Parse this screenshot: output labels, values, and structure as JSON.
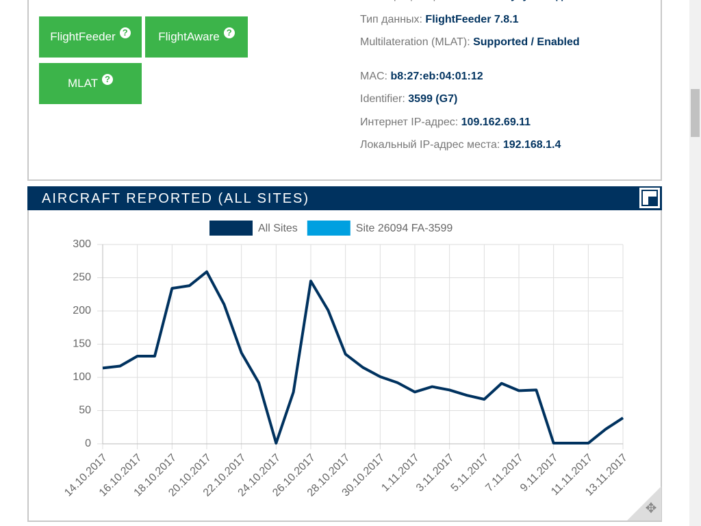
{
  "buttons": [
    {
      "label": "FlightFeeder",
      "help": "?"
    },
    {
      "label": "FlightAware",
      "help": "?"
    },
    {
      "label": "MLAT",
      "help": "?"
    }
  ],
  "info": [
    {
      "label": "Регистрация приемника:",
      "value": "Минуту назад"
    },
    {
      "label": "Тип данных:",
      "value": "FlightFeeder 7.8.1"
    },
    {
      "label": "Multilateration (MLAT):",
      "value": "Supported / Enabled"
    },
    {
      "label": "MAC:",
      "value": "b8:27:eb:04:01:12"
    },
    {
      "label": "Identifier:",
      "value": "3599 (G7)"
    },
    {
      "label": "Интернет IP-адрес:",
      "value": "109.162.69.11"
    },
    {
      "label": "Локальный IP-адрес места:",
      "value": "192.168.1.4"
    }
  ],
  "panel_title": "AIRCRAFT REPORTED (ALL SITES)",
  "chart_data": {
    "type": "line",
    "categories": [
      "14.10.2017",
      null,
      "16.10.2017",
      null,
      "18.10.2017",
      null,
      "20.10.2017",
      null,
      "22.10.2017",
      null,
      "24.10.2017",
      null,
      "26.10.2017",
      null,
      "28.10.2017",
      null,
      "30.10.2017",
      null,
      "1.11.2017",
      null,
      "3.11.2017",
      null,
      "5.11.2017",
      null,
      "7.11.2017",
      null,
      "9.11.2017",
      null,
      "11.11.2017",
      null,
      "13.11.2017"
    ],
    "series": [
      {
        "name": "All Sites",
        "color": "#00325f",
        "values": [
          114,
          117,
          132,
          132,
          234,
          238,
          259,
          210,
          137,
          92,
          1,
          78,
          245,
          201,
          135,
          115,
          101,
          92,
          78,
          86,
          81,
          73,
          67,
          91,
          80,
          81,
          1,
          1,
          1,
          22,
          39
        ]
      },
      {
        "name": "Site 26094 FA-3599",
        "color": "#00a0e0",
        "values": [
          114,
          117,
          132,
          132,
          234,
          238,
          259,
          210,
          137,
          92,
          1,
          78,
          245,
          201,
          135,
          115,
          101,
          92,
          78,
          86,
          81,
          73,
          67,
          91,
          80,
          81,
          1,
          1,
          1,
          22,
          39
        ]
      }
    ],
    "ylim": [
      0,
      300
    ],
    "yticks": [
      0,
      50,
      100,
      150,
      200,
      250,
      300
    ],
    "grid": true,
    "legend": "top"
  }
}
